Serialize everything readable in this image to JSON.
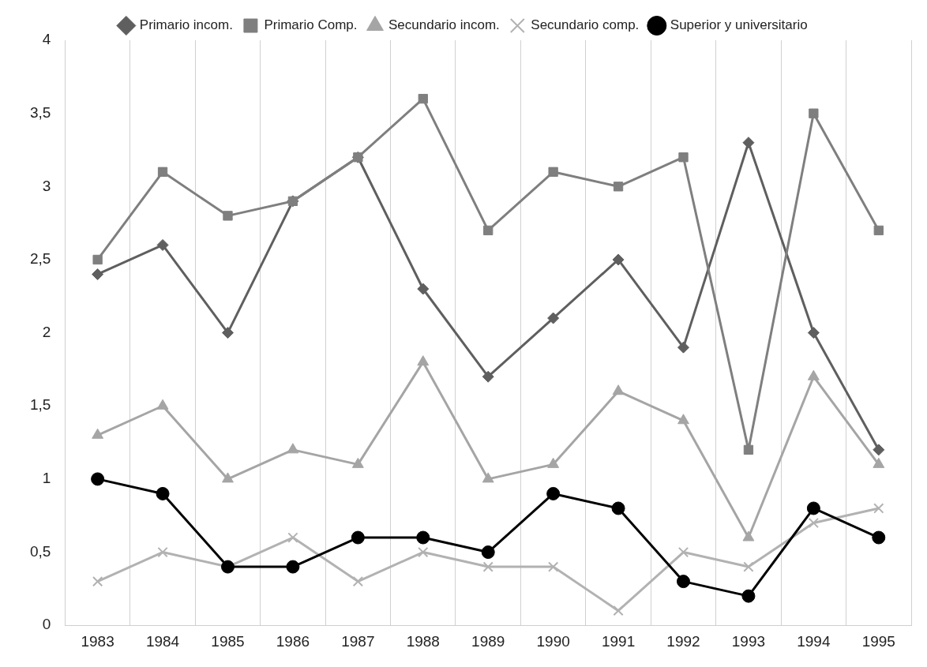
{
  "chart_data": {
    "type": "line",
    "categories": [
      "1983",
      "1984",
      "1985",
      "1986",
      "1987",
      "1988",
      "1989",
      "1990",
      "1991",
      "1992",
      "1993",
      "1994",
      "1995"
    ],
    "series": [
      {
        "name": "Primario incom.",
        "color": "#5f5f5f",
        "marker": "diamond",
        "values": [
          2.4,
          2.6,
          2.0,
          2.9,
          3.2,
          2.3,
          1.7,
          2.1,
          2.5,
          1.9,
          3.3,
          2.0,
          1.2
        ]
      },
      {
        "name": "Primario Comp.",
        "color": "#7f7f7f",
        "marker": "square",
        "values": [
          2.5,
          3.1,
          2.8,
          2.9,
          3.2,
          3.6,
          2.7,
          3.1,
          3.0,
          3.2,
          1.2,
          3.5,
          2.7
        ]
      },
      {
        "name": "Secundario incom.",
        "color": "#a5a5a5",
        "marker": "triangle",
        "values": [
          1.3,
          1.5,
          1.0,
          1.2,
          1.1,
          1.8,
          1.0,
          1.1,
          1.6,
          1.4,
          0.6,
          1.7,
          1.1
        ]
      },
      {
        "name": "Secundario comp.",
        "color": "#b2b2b2",
        "marker": "cross",
        "values": [
          0.3,
          0.5,
          0.4,
          0.6,
          0.3,
          0.5,
          0.4,
          0.4,
          0.1,
          0.5,
          0.4,
          0.7,
          0.8
        ]
      },
      {
        "name": "Superior y universitario",
        "color": "#000000",
        "marker": "circle",
        "values": [
          1.0,
          0.9,
          0.4,
          0.4,
          0.6,
          0.6,
          0.5,
          0.9,
          0.8,
          0.3,
          0.2,
          0.8,
          0.6
        ]
      }
    ],
    "ylim": [
      0,
      4
    ],
    "yticks": [
      0,
      {
        "value": 0.5,
        "label": "0,5"
      },
      1,
      {
        "value": 1.5,
        "label": "1,5"
      },
      2,
      {
        "value": 2.5,
        "label": "2,5"
      },
      3,
      {
        "value": 3.5,
        "label": "3,5"
      },
      4
    ],
    "grid": "x",
    "legend": "top"
  }
}
